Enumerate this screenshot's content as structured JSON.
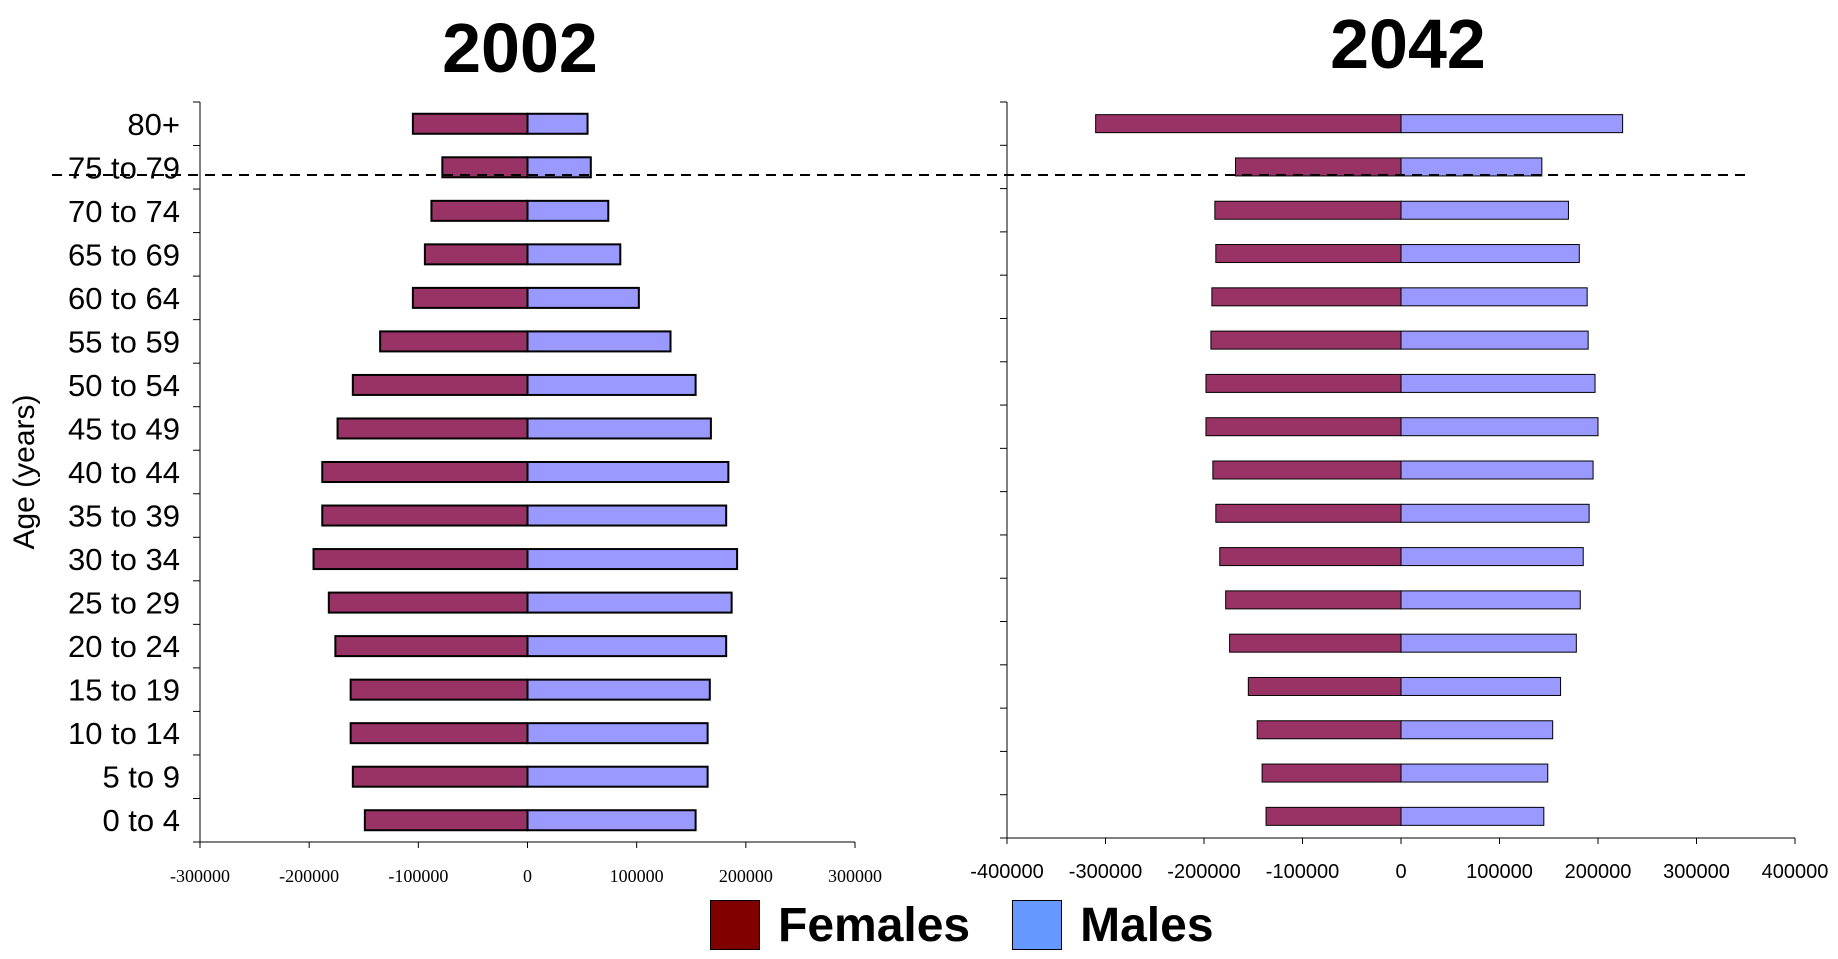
{
  "colors": {
    "female_bar": "#993366",
    "male_bar": "#9999ff",
    "legend_female": "#800000",
    "legend_male": "#6699ff",
    "axis": "#000000"
  },
  "chart_data": [
    {
      "type": "bar",
      "orientation": "horizontal",
      "title": "2002",
      "ylabel": "Age (years)",
      "categories": [
        "80+",
        "75 to 79",
        "70 to 74",
        "65 to 69",
        "60 to 64",
        "55 to 59",
        "50 to 54",
        "45 to 49",
        "40 to 44",
        "35 to 39",
        "30 to 34",
        "25 to 29",
        "20 to 24",
        "15 to 19",
        "10 to 14",
        "5 to 9",
        "0 to 4"
      ],
      "xlim": [
        -300000,
        300000
      ],
      "xticks": [
        "-300000",
        "-200000",
        "-100000",
        "0",
        "100000",
        "200000",
        "300000"
      ],
      "series": [
        {
          "name": "Females",
          "values": [
            -105000,
            -78000,
            -88000,
            -94000,
            -105000,
            -135000,
            -160000,
            -174000,
            -188000,
            -188000,
            -196000,
            -182000,
            -176000,
            -162000,
            -162000,
            -160000,
            -149000
          ]
        },
        {
          "name": "Males",
          "values": [
            55000,
            58000,
            74000,
            85000,
            102000,
            131000,
            154000,
            168000,
            184000,
            182000,
            192000,
            187000,
            182000,
            167000,
            165000,
            165000,
            154000
          ]
        }
      ]
    },
    {
      "type": "bar",
      "orientation": "horizontal",
      "title": "2042",
      "categories": [
        "80+",
        "75 to 79",
        "70 to 74",
        "65 to 69",
        "60 to 64",
        "55 to 59",
        "50 to 54",
        "45 to 49",
        "40 to 44",
        "35 to 39",
        "30 to 34",
        "25 to 29",
        "20 to 24",
        "15 to 19",
        "10 to 14",
        "5 to 9",
        "0 to 4"
      ],
      "xlim": [
        -400000,
        400000
      ],
      "xticks": [
        "-400000",
        "-300000",
        "-200000",
        "-100000",
        "0",
        "100000",
        "200000",
        "300000",
        "400000"
      ],
      "series": [
        {
          "name": "Females",
          "values": [
            -310000,
            -168000,
            -189000,
            -188000,
            -192000,
            -193000,
            -198000,
            -198000,
            -191000,
            -188000,
            -184000,
            -178000,
            -174000,
            -155000,
            -146000,
            -141000,
            -137000
          ]
        },
        {
          "name": "Males",
          "values": [
            225000,
            143000,
            170000,
            181000,
            189000,
            190000,
            197000,
            200000,
            195000,
            191000,
            185000,
            182000,
            178000,
            162000,
            154000,
            149000,
            145000
          ]
        }
      ]
    }
  ],
  "legend": [
    {
      "label": "Females"
    },
    {
      "label": "Males"
    }
  ]
}
